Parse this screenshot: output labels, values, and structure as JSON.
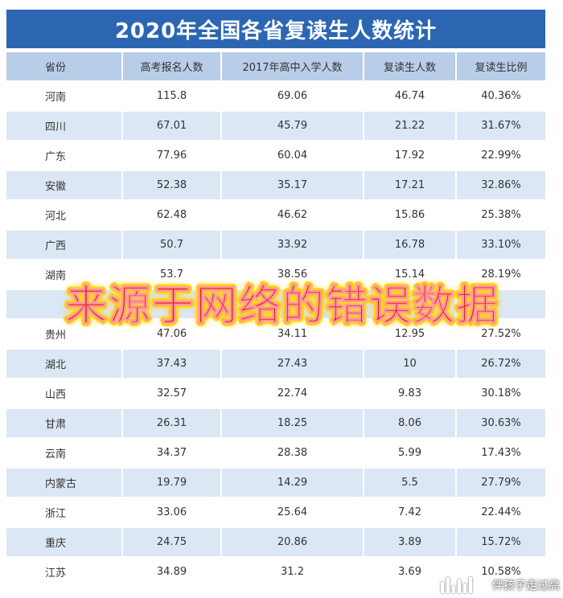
{
  "title": "2020年全国各省复读生人数统计",
  "headers": [
    "省份",
    "高考报名人数",
    "2017年高中入学人数",
    "复读生人数",
    "复读生比例"
  ],
  "rows": [
    [
      "河南",
      "115.8",
      "69.06",
      "46.74",
      "40.36%"
    ],
    [
      "四川",
      "67.01",
      "45.79",
      "21.22",
      "31.67%"
    ],
    [
      "广东",
      "77.96",
      "60.04",
      "17.92",
      "22.99%"
    ],
    [
      "安徽",
      "52.38",
      "35.17",
      "17.21",
      "32.86%"
    ],
    [
      "河北",
      "62.48",
      "46.62",
      "15.86",
      "25.38%"
    ],
    [
      "广西",
      "50.7",
      "33.92",
      "16.78",
      "33.10%"
    ],
    [
      "湖南",
      "53.7",
      "38.56",
      "15.14",
      "28.19%"
    ],
    [
      "",
      "37.",
      "",
      "",
      ""
    ],
    [
      "贵州",
      "47.06",
      "34.11",
      "12.95",
      "27.52%"
    ],
    [
      "湖北",
      "37.43",
      "27.43",
      "10",
      "26.72%"
    ],
    [
      "山西",
      "32.57",
      "22.74",
      "9.83",
      "30.18%"
    ],
    [
      "甘肃",
      "26.31",
      "18.25",
      "8.06",
      "30.63%"
    ],
    [
      "云南",
      "34.37",
      "28.38",
      "5.99",
      "17.43%"
    ],
    [
      "内蒙古",
      "19.79",
      "14.29",
      "5.5",
      "27.79%"
    ],
    [
      "浙江",
      "33.06",
      "25.64",
      "7.42",
      "22.44%"
    ],
    [
      "重庆",
      "24.75",
      "20.86",
      "3.89",
      "15.72%"
    ],
    [
      "江苏",
      "34.89",
      "31.2",
      "3.69",
      "10.58%"
    ]
  ],
  "overlay_text": "来源于网络的错误数据",
  "watermark_text": "伴孩子走过高",
  "colors": {
    "title_bg": "#2c66b3",
    "header_bg": "#b8cde8",
    "stripe": "#dce7f5",
    "overlay_text": "#ee1b17",
    "overlay_glow": "#ffd400"
  }
}
